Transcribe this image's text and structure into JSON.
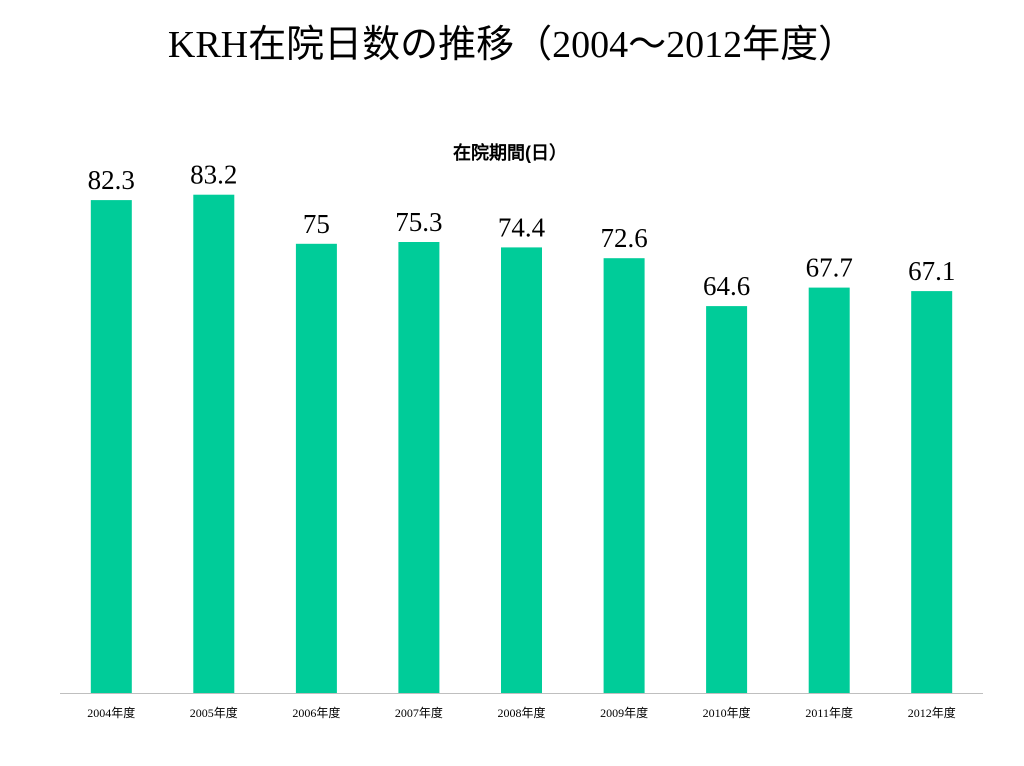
{
  "slide": {
    "title": "KRH在院日数の推移（2004～2012年度）"
  },
  "chart_data": {
    "type": "bar",
    "title": "在院期間(日）",
    "categories": [
      "2004年度",
      "2005年度",
      "2006年度",
      "2007年度",
      "2008年度",
      "2009年度",
      "2010年度",
      "2011年度",
      "2012年度"
    ],
    "values": [
      82.3,
      83.2,
      75,
      75.3,
      74.4,
      72.6,
      64.6,
      67.7,
      67.1
    ],
    "ylim": [
      0,
      90
    ],
    "grid": false,
    "legend": "none",
    "data_labels": true,
    "colors": {
      "bar": "#00CC99",
      "axis": "#BFBFBF"
    }
  }
}
